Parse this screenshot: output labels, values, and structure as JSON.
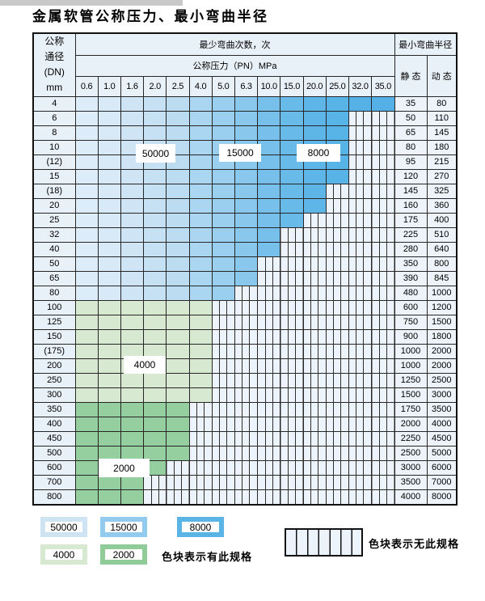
{
  "title": "金属软管公称压力、最小弯曲半径",
  "table": {
    "dn_header_lines": [
      "公称",
      "通径",
      "(DN)",
      "mm"
    ],
    "bend_cycles_header": "最少弯曲次数，次",
    "pressure_header": "公称压力（PN）MPa",
    "radius_header": "最小弯曲半径",
    "static_label": "静 态",
    "dynamic_label": "动 态",
    "pressure_columns": [
      "0.6",
      "1.0",
      "1.6",
      "2.0",
      "2.5",
      "4.0",
      "5.0",
      "6.3",
      "10.0",
      "15.0",
      "20.0",
      "25.0",
      "32.0",
      "35.0"
    ],
    "rows": [
      {
        "dn": "4",
        "colored": 14,
        "zone": "blue",
        "static": "35",
        "dynamic": "80"
      },
      {
        "dn": "6",
        "colored": 12,
        "zone": "blue",
        "static": "50",
        "dynamic": "110"
      },
      {
        "dn": "8",
        "colored": 12,
        "zone": "blue",
        "static": "65",
        "dynamic": "145"
      },
      {
        "dn": "10",
        "colored": 12,
        "zone": "blue",
        "static": "80",
        "dynamic": "180"
      },
      {
        "dn": "(12)",
        "colored": 12,
        "zone": "blue",
        "static": "95",
        "dynamic": "215"
      },
      {
        "dn": "15",
        "colored": 12,
        "zone": "blue",
        "static": "120",
        "dynamic": "270"
      },
      {
        "dn": "(18)",
        "colored": 11,
        "zone": "blue",
        "static": "145",
        "dynamic": "325"
      },
      {
        "dn": "20",
        "colored": 11,
        "zone": "blue",
        "static": "160",
        "dynamic": "360"
      },
      {
        "dn": "25",
        "colored": 10,
        "zone": "blue",
        "static": "175",
        "dynamic": "400"
      },
      {
        "dn": "32",
        "colored": 9,
        "zone": "blue",
        "static": "225",
        "dynamic": "510"
      },
      {
        "dn": "40",
        "colored": 9,
        "zone": "blue",
        "static": "280",
        "dynamic": "640"
      },
      {
        "dn": "50",
        "colored": 8,
        "zone": "blue",
        "static": "350",
        "dynamic": "800"
      },
      {
        "dn": "65",
        "colored": 8,
        "zone": "blue",
        "static": "390",
        "dynamic": "845"
      },
      {
        "dn": "80",
        "colored": 7,
        "zone": "blue",
        "static": "480",
        "dynamic": "1000"
      },
      {
        "dn": "100",
        "colored": 6,
        "zone": "green-4000",
        "static": "600",
        "dynamic": "1200"
      },
      {
        "dn": "125",
        "colored": 6,
        "zone": "green-4000",
        "static": "750",
        "dynamic": "1500"
      },
      {
        "dn": "150",
        "colored": 6,
        "zone": "green-4000",
        "static": "900",
        "dynamic": "1800"
      },
      {
        "dn": "(175)",
        "colored": 6,
        "zone": "green-4000",
        "static": "1000",
        "dynamic": "2000"
      },
      {
        "dn": "200",
        "colored": 6,
        "zone": "green-4000",
        "static": "1000",
        "dynamic": "2000"
      },
      {
        "dn": "250",
        "colored": 6,
        "zone": "green-4000",
        "static": "1250",
        "dynamic": "2500"
      },
      {
        "dn": "300",
        "colored": 6,
        "zone": "green-4000",
        "static": "1500",
        "dynamic": "3000"
      },
      {
        "dn": "350",
        "colored": 5,
        "zone": "green-2000",
        "static": "1750",
        "dynamic": "3500"
      },
      {
        "dn": "400",
        "colored": 5,
        "zone": "green-2000",
        "static": "2000",
        "dynamic": "4000"
      },
      {
        "dn": "450",
        "colored": 5,
        "zone": "green-2000",
        "static": "2250",
        "dynamic": "4500"
      },
      {
        "dn": "500",
        "colored": 5,
        "zone": "green-2000",
        "static": "2500",
        "dynamic": "5000"
      },
      {
        "dn": "600",
        "colored": 4,
        "zone": "green-2000",
        "static": "3000",
        "dynamic": "6000"
      },
      {
        "dn": "700",
        "colored": 3,
        "zone": "green-2000",
        "static": "3500",
        "dynamic": "7000"
      },
      {
        "dn": "800",
        "colored": 3,
        "zone": "green-2000",
        "static": "4000",
        "dynamic": "8000"
      }
    ]
  },
  "zone_labels": {
    "z50000": "50000",
    "z15000": "15000",
    "z8000": "8000",
    "z4000": "4000",
    "z2000": "2000"
  },
  "legend": {
    "items": [
      {
        "label": "50000",
        "color": "#cfe4f3"
      },
      {
        "label": "15000",
        "color": "#92cbee"
      },
      {
        "label": "8000",
        "color": "#5bb4e6"
      },
      {
        "label": "4000",
        "color": "#d7e9d1"
      },
      {
        "label": "2000",
        "color": "#8fcc9a"
      }
    ],
    "has_spec_note": "色块表示有此规格",
    "no_spec_note": "色块表示无此规格"
  },
  "colors": {
    "blue_scale": [
      "#dcecf8",
      "#d8eaf7",
      "#cfe5f5",
      "#c6e1f4",
      "#bcdcf2",
      "#abd6f1",
      "#9bcfef",
      "#8ac7ed",
      "#76c0eb",
      "#68bae9",
      "#5eb6e8",
      "#58b3e7",
      "#55b1e6",
      "#54b0e6"
    ],
    "green_4000": "#d7e9d1",
    "green_2000": "#96cf9f",
    "header_bg": "#e9f1f8",
    "stripe_bg": "#edf3fa",
    "grid_line": "#262626"
  }
}
